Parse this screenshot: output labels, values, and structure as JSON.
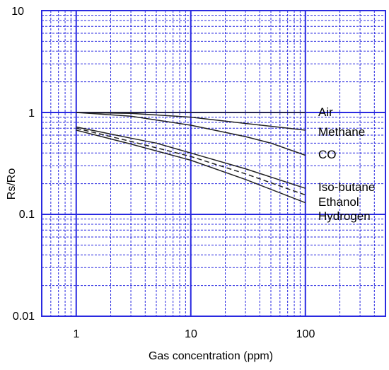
{
  "chart_data": {
    "type": "line",
    "title": "",
    "xlabel": "Gas concentration (ppm)",
    "ylabel": "Rs/Ro",
    "xscale": "log",
    "yscale": "log",
    "xlim": [
      0.5,
      500
    ],
    "ylim": [
      0.01,
      10
    ],
    "grid": true,
    "x_tick_labels": [
      "1",
      "10",
      "100"
    ],
    "y_tick_labels": [
      "10",
      "1",
      "0.1",
      "0.01"
    ],
    "colors": {
      "grid": "#2a2ae0",
      "series": "#222222"
    },
    "series": [
      {
        "name": "Air",
        "x": [
          1,
          100
        ],
        "y": [
          1.0,
          1.0
        ]
      },
      {
        "name": "Methane",
        "x": [
          1,
          3,
          10,
          30,
          100
        ],
        "y": [
          1.0,
          0.98,
          0.9,
          0.78,
          0.67
        ]
      },
      {
        "name": "CO",
        "x": [
          1,
          3,
          10,
          30,
          50,
          100
        ],
        "y": [
          1.0,
          0.92,
          0.75,
          0.58,
          0.5,
          0.38
        ]
      },
      {
        "name": "Iso-butane",
        "x": [
          1,
          3,
          5,
          10,
          30,
          100
        ],
        "y": [
          0.72,
          0.56,
          0.5,
          0.4,
          0.28,
          0.18
        ]
      },
      {
        "name": "Ethanol",
        "x": [
          1,
          3,
          10,
          30,
          100
        ],
        "y": [
          0.7,
          0.52,
          0.37,
          0.25,
          0.155
        ],
        "dash": true
      },
      {
        "name": "Hydrogen",
        "x": [
          1,
          3,
          10,
          30,
          100
        ],
        "y": [
          0.67,
          0.49,
          0.34,
          0.22,
          0.13
        ]
      }
    ]
  }
}
